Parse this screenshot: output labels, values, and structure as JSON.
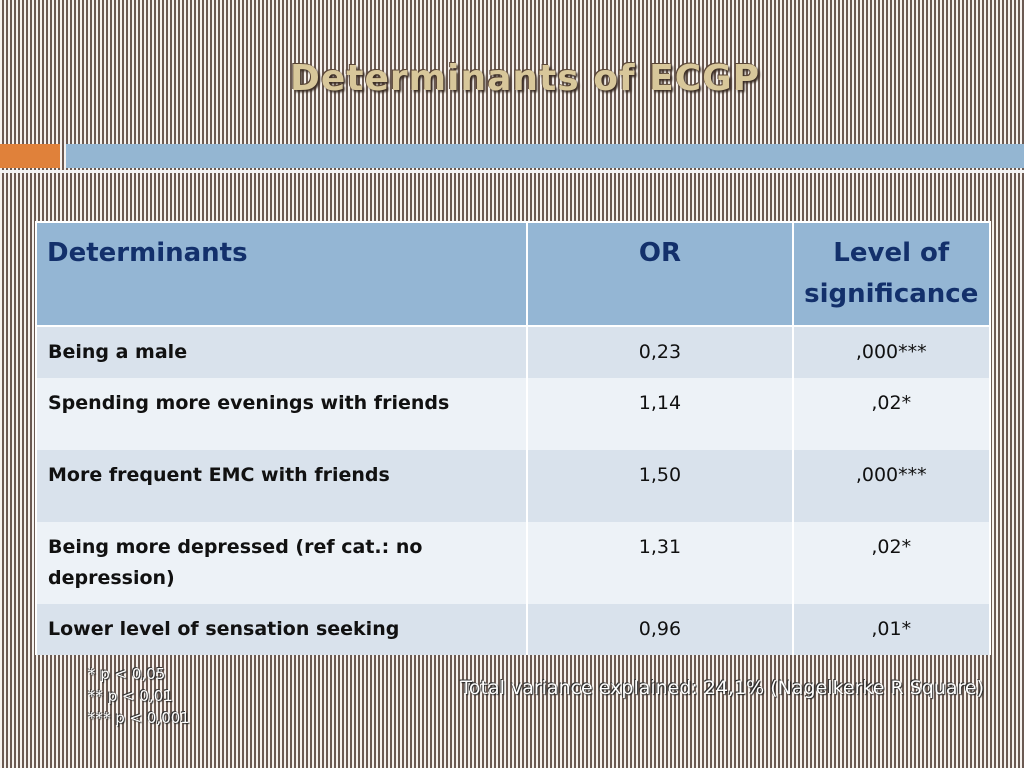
{
  "title": "Determinants of ECGP",
  "table": {
    "headers": {
      "determinants": "Determinants",
      "or": "OR",
      "significance": "Level of significance"
    },
    "rows": [
      {
        "determinant": "Being  a male",
        "or": "0,23",
        "significance": ",000***"
      },
      {
        "determinant": "Spending more evenings with friends",
        "or": "1,14",
        "significance": ",02*"
      },
      {
        "determinant": "More frequent EMC with friends",
        "or": "1,50",
        "significance": ",000***"
      },
      {
        "determinant": "Being more depressed (ref cat.: no depression)",
        "or": "1,31",
        "significance": ",02*"
      },
      {
        "determinant": "Lower level of sensation seeking",
        "or": "0,96",
        "significance": ",01*"
      }
    ]
  },
  "notes": [
    "* p < 0,05",
    "** p < 0,01",
    "*** p < 0,001"
  ],
  "total_variance": "Total variance explained: 24,1% (Nagelkerke R Square)",
  "colors": {
    "title": "#d8c79a",
    "accent_orange": "#e0813a",
    "accent_blue": "#94b6d2",
    "header_text": "#13306b"
  }
}
